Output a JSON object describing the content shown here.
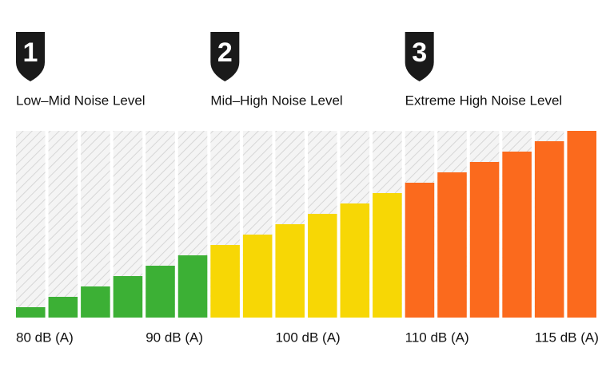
{
  "chart_data": {
    "type": "bar",
    "categories": [
      "80 dB (A)",
      null,
      null,
      null,
      "90 dB (A)",
      null,
      null,
      null,
      "100 dB (A)",
      null,
      null,
      null,
      "110 dB (A)",
      null,
      null,
      null,
      "115 dB (A)",
      null
    ],
    "series": [
      {
        "name": "Low–Mid Noise Level",
        "badge": "1",
        "color": "#3cb035",
        "values": [
          1,
          2,
          3,
          4,
          5,
          6,
          null,
          null,
          null,
          null,
          null,
          null,
          null,
          null,
          null,
          null,
          null,
          null
        ]
      },
      {
        "name": "Mid–High Noise Level",
        "badge": "2",
        "color": "#f7d705",
        "values": [
          null,
          null,
          null,
          null,
          null,
          null,
          7,
          8,
          9,
          10,
          11,
          12,
          null,
          null,
          null,
          null,
          null,
          null
        ]
      },
      {
        "name": "Extreme High Noise Level",
        "badge": "3",
        "color": "#fb6a1d",
        "values": [
          null,
          null,
          null,
          null,
          null,
          null,
          null,
          null,
          null,
          null,
          null,
          null,
          13,
          14,
          15,
          16,
          17,
          18
        ]
      }
    ],
    "ylim": [
      0,
      18
    ]
  }
}
